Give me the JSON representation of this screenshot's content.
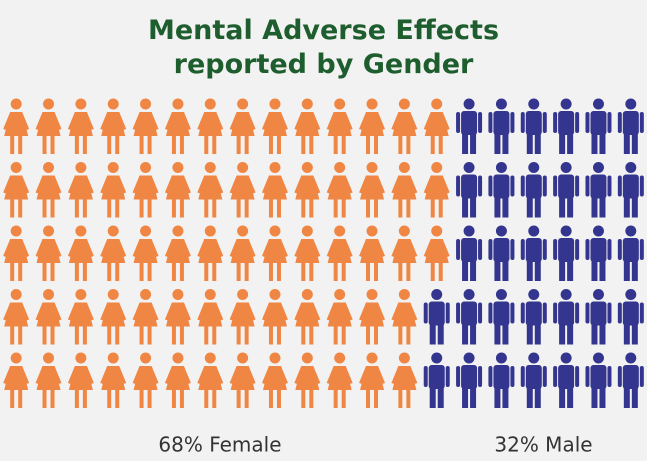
{
  "chart_data": {
    "type": "pictogram",
    "title": "Mental Adverse Effects reported by Gender",
    "values": [
      68,
      32
    ],
    "value_labels": [
      "68% Female",
      "32% Male"
    ],
    "colors": [
      "#ef8644",
      "#33358f"
    ]
  }
}
